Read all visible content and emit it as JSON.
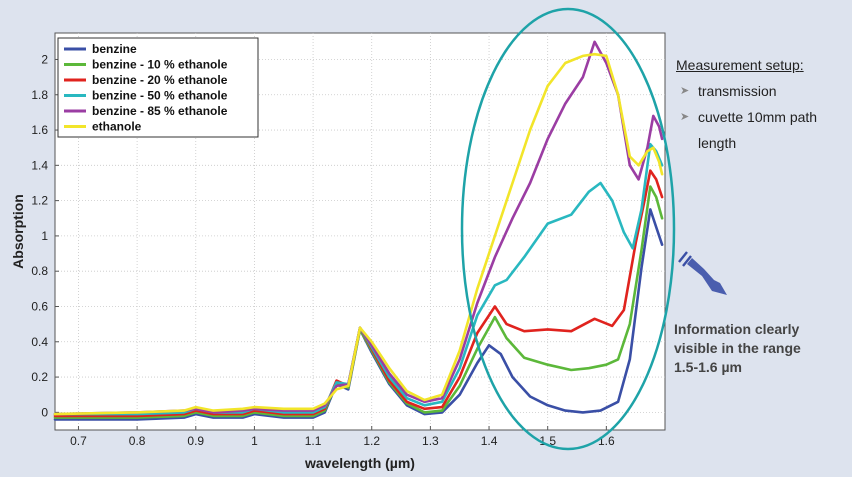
{
  "chart_data": {
    "type": "line",
    "title": "",
    "xlabel": "wavelength (µm)",
    "ylabel": "Absorption",
    "xlim": [
      0.66,
      1.7
    ],
    "ylim": [
      -0.1,
      2.15
    ],
    "xticks": [
      0.7,
      0.8,
      0.9,
      1.0,
      1.1,
      1.2,
      1.3,
      1.4,
      1.5,
      1.6
    ],
    "xtick_labels": [
      "0.7",
      "0.8",
      "0.9",
      "1",
      "1.1",
      "1.2",
      "1.3",
      "1.4",
      "1.5",
      "1.6"
    ],
    "yticks": [
      0,
      0.2,
      0.4,
      0.6,
      0.8,
      1.0,
      1.2,
      1.4,
      1.6,
      1.8,
      2.0
    ],
    "ytick_labels": [
      "0",
      "0.2",
      "0.4",
      "0.6",
      "0.8",
      "1",
      "1.2",
      "1.4",
      "1.6",
      "1.8",
      "2"
    ],
    "grid": true,
    "legend_position": "top-left",
    "series": [
      {
        "name": "benzine",
        "color": "#3a4fa6",
        "points": [
          [
            0.66,
            -0.04
          ],
          [
            0.8,
            -0.04
          ],
          [
            0.88,
            -0.03
          ],
          [
            0.9,
            -0.01
          ],
          [
            0.93,
            -0.03
          ],
          [
            0.98,
            -0.03
          ],
          [
            1.0,
            -0.01
          ],
          [
            1.05,
            -0.03
          ],
          [
            1.1,
            -0.03
          ],
          [
            1.12,
            0.0
          ],
          [
            1.14,
            0.16
          ],
          [
            1.16,
            0.13
          ],
          [
            1.18,
            0.47
          ],
          [
            1.2,
            0.34
          ],
          [
            1.23,
            0.16
          ],
          [
            1.26,
            0.04
          ],
          [
            1.29,
            -0.01
          ],
          [
            1.32,
            0.0
          ],
          [
            1.35,
            0.1
          ],
          [
            1.38,
            0.28
          ],
          [
            1.4,
            0.38
          ],
          [
            1.42,
            0.33
          ],
          [
            1.44,
            0.2
          ],
          [
            1.47,
            0.09
          ],
          [
            1.5,
            0.04
          ],
          [
            1.53,
            0.01
          ],
          [
            1.56,
            0.0
          ],
          [
            1.59,
            0.01
          ],
          [
            1.62,
            0.06
          ],
          [
            1.64,
            0.3
          ],
          [
            1.66,
            0.82
          ],
          [
            1.675,
            1.15
          ],
          [
            1.685,
            1.05
          ],
          [
            1.695,
            0.95
          ]
        ]
      },
      {
        "name": "benzine - 10 % ethanole",
        "color": "#5cb83a",
        "points": [
          [
            0.66,
            -0.03
          ],
          [
            0.8,
            -0.03
          ],
          [
            0.88,
            -0.02
          ],
          [
            0.9,
            0.0
          ],
          [
            0.93,
            -0.02
          ],
          [
            0.98,
            -0.02
          ],
          [
            1.0,
            0.0
          ],
          [
            1.05,
            -0.02
          ],
          [
            1.1,
            -0.02
          ],
          [
            1.12,
            0.01
          ],
          [
            1.14,
            0.17
          ],
          [
            1.16,
            0.14
          ],
          [
            1.18,
            0.47
          ],
          [
            1.2,
            0.35
          ],
          [
            1.23,
            0.17
          ],
          [
            1.26,
            0.05
          ],
          [
            1.29,
            0.0
          ],
          [
            1.32,
            0.01
          ],
          [
            1.35,
            0.15
          ],
          [
            1.38,
            0.36
          ],
          [
            1.41,
            0.54
          ],
          [
            1.43,
            0.42
          ],
          [
            1.46,
            0.31
          ],
          [
            1.5,
            0.27
          ],
          [
            1.54,
            0.24
          ],
          [
            1.57,
            0.25
          ],
          [
            1.6,
            0.27
          ],
          [
            1.62,
            0.3
          ],
          [
            1.64,
            0.5
          ],
          [
            1.66,
            0.92
          ],
          [
            1.675,
            1.28
          ],
          [
            1.685,
            1.22
          ],
          [
            1.695,
            1.1
          ]
        ]
      },
      {
        "name": "benzine - 20 % ethanole",
        "color": "#e0231e",
        "points": [
          [
            0.66,
            -0.02
          ],
          [
            0.8,
            -0.02
          ],
          [
            0.88,
            -0.01
          ],
          [
            0.9,
            0.01
          ],
          [
            0.93,
            -0.01
          ],
          [
            0.98,
            -0.01
          ],
          [
            1.0,
            0.01
          ],
          [
            1.05,
            -0.01
          ],
          [
            1.1,
            -0.01
          ],
          [
            1.12,
            0.02
          ],
          [
            1.14,
            0.18
          ],
          [
            1.16,
            0.15
          ],
          [
            1.18,
            0.48
          ],
          [
            1.2,
            0.36
          ],
          [
            1.23,
            0.18
          ],
          [
            1.26,
            0.06
          ],
          [
            1.29,
            0.02
          ],
          [
            1.32,
            0.03
          ],
          [
            1.35,
            0.2
          ],
          [
            1.38,
            0.45
          ],
          [
            1.41,
            0.6
          ],
          [
            1.43,
            0.5
          ],
          [
            1.46,
            0.46
          ],
          [
            1.5,
            0.47
          ],
          [
            1.54,
            0.46
          ],
          [
            1.58,
            0.53
          ],
          [
            1.61,
            0.49
          ],
          [
            1.63,
            0.58
          ],
          [
            1.65,
            0.96
          ],
          [
            1.665,
            1.2
          ],
          [
            1.675,
            1.37
          ],
          [
            1.685,
            1.32
          ],
          [
            1.695,
            1.22
          ]
        ]
      },
      {
        "name": "benzine - 50 % ethanole",
        "color": "#29b8c0",
        "points": [
          [
            0.66,
            -0.01
          ],
          [
            0.8,
            -0.01
          ],
          [
            0.88,
            0.0
          ],
          [
            0.9,
            0.02
          ],
          [
            0.93,
            0.0
          ],
          [
            0.98,
            0.0
          ],
          [
            1.0,
            0.02
          ],
          [
            1.05,
            0.0
          ],
          [
            1.1,
            0.0
          ],
          [
            1.12,
            0.03
          ],
          [
            1.14,
            0.17
          ],
          [
            1.16,
            0.16
          ],
          [
            1.18,
            0.48
          ],
          [
            1.2,
            0.37
          ],
          [
            1.23,
            0.2
          ],
          [
            1.26,
            0.08
          ],
          [
            1.29,
            0.04
          ],
          [
            1.32,
            0.06
          ],
          [
            1.35,
            0.25
          ],
          [
            1.38,
            0.55
          ],
          [
            1.41,
            0.72
          ],
          [
            1.43,
            0.75
          ],
          [
            1.46,
            0.88
          ],
          [
            1.5,
            1.07
          ],
          [
            1.54,
            1.12
          ],
          [
            1.57,
            1.25
          ],
          [
            1.59,
            1.3
          ],
          [
            1.61,
            1.2
          ],
          [
            1.63,
            1.02
          ],
          [
            1.645,
            0.93
          ],
          [
            1.66,
            1.15
          ],
          [
            1.675,
            1.52
          ],
          [
            1.685,
            1.48
          ],
          [
            1.695,
            1.4
          ]
        ]
      },
      {
        "name": "benzine - 85 % ethanole",
        "color": "#9b3da3",
        "points": [
          [
            0.66,
            -0.01
          ],
          [
            0.8,
            0.0
          ],
          [
            0.88,
            0.01
          ],
          [
            0.9,
            0.02
          ],
          [
            0.93,
            0.0
          ],
          [
            0.98,
            0.01
          ],
          [
            1.0,
            0.02
          ],
          [
            1.05,
            0.01
          ],
          [
            1.1,
            0.01
          ],
          [
            1.12,
            0.04
          ],
          [
            1.14,
            0.15
          ],
          [
            1.16,
            0.16
          ],
          [
            1.18,
            0.48
          ],
          [
            1.2,
            0.38
          ],
          [
            1.23,
            0.22
          ],
          [
            1.26,
            0.1
          ],
          [
            1.29,
            0.06
          ],
          [
            1.32,
            0.08
          ],
          [
            1.35,
            0.3
          ],
          [
            1.38,
            0.62
          ],
          [
            1.41,
            0.88
          ],
          [
            1.44,
            1.1
          ],
          [
            1.47,
            1.3
          ],
          [
            1.5,
            1.55
          ],
          [
            1.53,
            1.75
          ],
          [
            1.56,
            1.9
          ],
          [
            1.58,
            2.1
          ],
          [
            1.6,
            1.98
          ],
          [
            1.62,
            1.8
          ],
          [
            1.64,
            1.4
          ],
          [
            1.655,
            1.32
          ],
          [
            1.67,
            1.5
          ],
          [
            1.68,
            1.68
          ],
          [
            1.69,
            1.62
          ],
          [
            1.695,
            1.55
          ]
        ]
      },
      {
        "name": "ethanole",
        "color": "#f2e52a",
        "points": [
          [
            0.66,
            -0.01
          ],
          [
            0.8,
            0.0
          ],
          [
            0.88,
            0.01
          ],
          [
            0.9,
            0.03
          ],
          [
            0.93,
            0.01
          ],
          [
            0.98,
            0.02
          ],
          [
            1.0,
            0.03
          ],
          [
            1.05,
            0.02
          ],
          [
            1.1,
            0.02
          ],
          [
            1.12,
            0.05
          ],
          [
            1.14,
            0.13
          ],
          [
            1.16,
            0.15
          ],
          [
            1.18,
            0.48
          ],
          [
            1.2,
            0.4
          ],
          [
            1.23,
            0.25
          ],
          [
            1.26,
            0.12
          ],
          [
            1.29,
            0.07
          ],
          [
            1.32,
            0.1
          ],
          [
            1.35,
            0.35
          ],
          [
            1.38,
            0.7
          ],
          [
            1.41,
            1.0
          ],
          [
            1.44,
            1.3
          ],
          [
            1.47,
            1.6
          ],
          [
            1.5,
            1.85
          ],
          [
            1.53,
            1.98
          ],
          [
            1.56,
            2.02
          ],
          [
            1.58,
            2.03
          ],
          [
            1.6,
            2.02
          ],
          [
            1.62,
            1.8
          ],
          [
            1.64,
            1.45
          ],
          [
            1.655,
            1.4
          ],
          [
            1.67,
            1.48
          ],
          [
            1.68,
            1.5
          ],
          [
            1.69,
            1.42
          ],
          [
            1.695,
            1.35
          ]
        ]
      }
    ]
  },
  "side_panel": {
    "title": "Measurement setup",
    "title_colon": ":",
    "items": [
      "transmission",
      "cuvette 10mm path"
    ],
    "continuation": "length"
  },
  "annotation": {
    "lines": [
      "Information clearly",
      "visible in the range",
      "1.5-1.6 µm"
    ],
    "arrow_color": "#3a4fa6",
    "ellipse_color": "#1ea3a8"
  },
  "colors": {
    "background": "#dde3ee",
    "plot_background": "#ffffff"
  }
}
